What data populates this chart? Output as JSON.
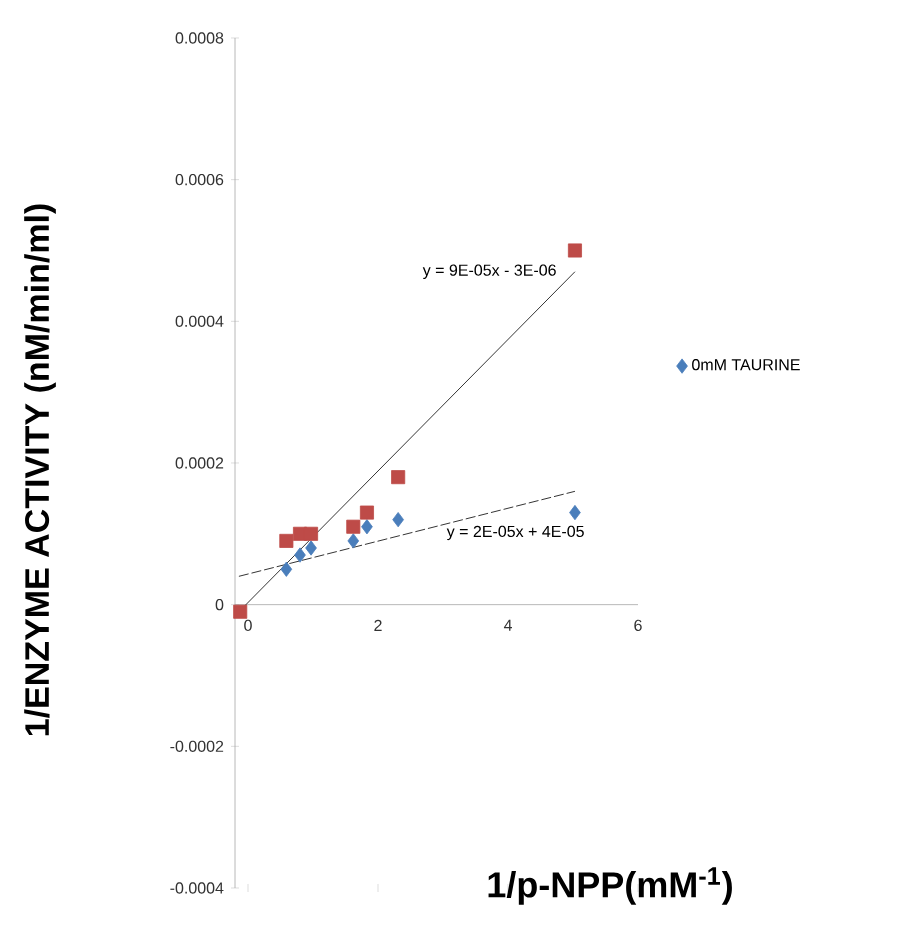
{
  "chart_data": {
    "type": "scatter",
    "xlabel": "1/p-NPP(mM$^{-1}$)",
    "ylabel": "1/ENZYME ACTIVITY (nM/min/ml)",
    "xlim": [
      -0.2,
      6
    ],
    "ylim": [
      -0.0004,
      0.0008
    ],
    "xticks": [
      0,
      2,
      4,
      6
    ],
    "yticks": [
      -0.0004,
      -0.0002,
      0,
      0.0002,
      0.0004,
      0.0006,
      0.0008
    ],
    "legend": "right",
    "grid": false,
    "series": [
      {
        "name": "0mM TAURINE",
        "marker": "diamond",
        "color": "#4a7ebb",
        "x": [
          0.59,
          0.8,
          0.97,
          1.62,
          1.83,
          2.31,
          5.03
        ],
        "values": [
          5e-05,
          7e-05,
          8e-05,
          9e-05,
          0.00011,
          0.00012,
          0.00013
        ]
      },
      {
        "marker": "square",
        "color": "#be4b48",
        "x": [
          -0.12,
          0.59,
          0.8,
          0.97,
          1.62,
          1.83,
          2.31,
          5.03
        ],
        "values": [
          -1e-05,
          9e-05,
          0.0001,
          0.0001,
          0.00011,
          0.00013,
          0.00018,
          0.0005
        ]
      },
      {
        "type": "line",
        "line_style": "solid",
        "color": "#000000",
        "x": [
          -0.14,
          5.03
        ],
        "values": [
          -1e-05,
          0.00047
        ]
      },
      {
        "type": "line",
        "line_style": "dashed",
        "color": "#000000",
        "x": [
          -0.14,
          5.03
        ],
        "values": [
          4e-05,
          0.00016
        ]
      }
    ],
    "annotations": [
      "y = 9E-05x - 3E-06",
      "y = 2E-05x + 4E-05"
    ]
  }
}
